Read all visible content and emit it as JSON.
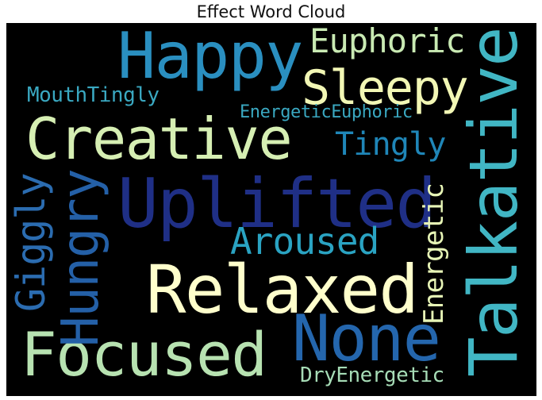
{
  "title": "Effect Word Cloud",
  "words": [
    {
      "text": "Happy",
      "color": "#2a8fc0"
    },
    {
      "text": "Euphoric",
      "color": "#c9eab3"
    },
    {
      "text": "Sleepy",
      "color": "#f2f7b5"
    },
    {
      "text": "Talkative",
      "color": "#41b6c4"
    },
    {
      "text": "MouthTingly",
      "color": "#3aa8c1"
    },
    {
      "text": "EnergeticEuphoric",
      "color": "#3aa8c1"
    },
    {
      "text": "Creative",
      "color": "#d6efb3"
    },
    {
      "text": "Tingly",
      "color": "#1f86b8"
    },
    {
      "text": "Uplifted",
      "color": "#1f2f86"
    },
    {
      "text": "Hungry",
      "color": "#2460a7"
    },
    {
      "text": "Giggly",
      "color": "#2b6cb0"
    },
    {
      "text": "Energetic",
      "color": "#e7f5b6"
    },
    {
      "text": "Aroused",
      "color": "#2aa3c2"
    },
    {
      "text": "Relaxed",
      "color": "#ffffcc"
    },
    {
      "text": "None",
      "color": "#2466ad"
    },
    {
      "text": "Focused",
      "color": "#b7e2b1"
    },
    {
      "text": "DryEnergetic",
      "color": "#a6dcb6"
    }
  ]
}
